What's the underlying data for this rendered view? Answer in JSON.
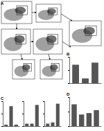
{
  "panel_labels": [
    "A",
    "B",
    "C",
    "D"
  ],
  "chart_data": [
    {
      "type": "bar",
      "categories": [
        null,
        null,
        null
      ],
      "values": [
        70,
        18,
        78
      ],
      "color": "#555555",
      "ylim": [
        0,
        100
      ],
      "yticks": [
        0,
        50,
        100
      ],
      "tick_labels": false
    },
    {
      "type": "bar",
      "categories": [
        null,
        null,
        null
      ],
      "values": [
        6,
        80,
        6
      ],
      "color": "#555555",
      "ylim": [
        0,
        100
      ],
      "yticks": [
        0,
        50,
        100
      ],
      "tick_labels": false
    },
    {
      "type": "bar",
      "categories": [
        null,
        null,
        null
      ],
      "values": [
        10,
        10,
        85
      ],
      "color": "#555555",
      "ylim": [
        0,
        100
      ],
      "yticks": [
        0,
        50,
        100
      ],
      "tick_labels": false
    },
    {
      "type": "bar",
      "categories": [
        null,
        null,
        null
      ],
      "values": [
        10,
        15,
        90
      ],
      "color": "#555555",
      "ylim": [
        0,
        100
      ],
      "yticks": [
        0,
        50,
        100
      ],
      "tick_labels": false
    },
    {
      "type": "bar",
      "categories": [
        null,
        null,
        null,
        null
      ],
      "values": [
        75,
        40,
        45,
        55
      ],
      "color": "#555555",
      "ylim": [
        0,
        100
      ],
      "yticks": [
        0,
        50,
        100
      ],
      "tick_labels": false
    }
  ]
}
